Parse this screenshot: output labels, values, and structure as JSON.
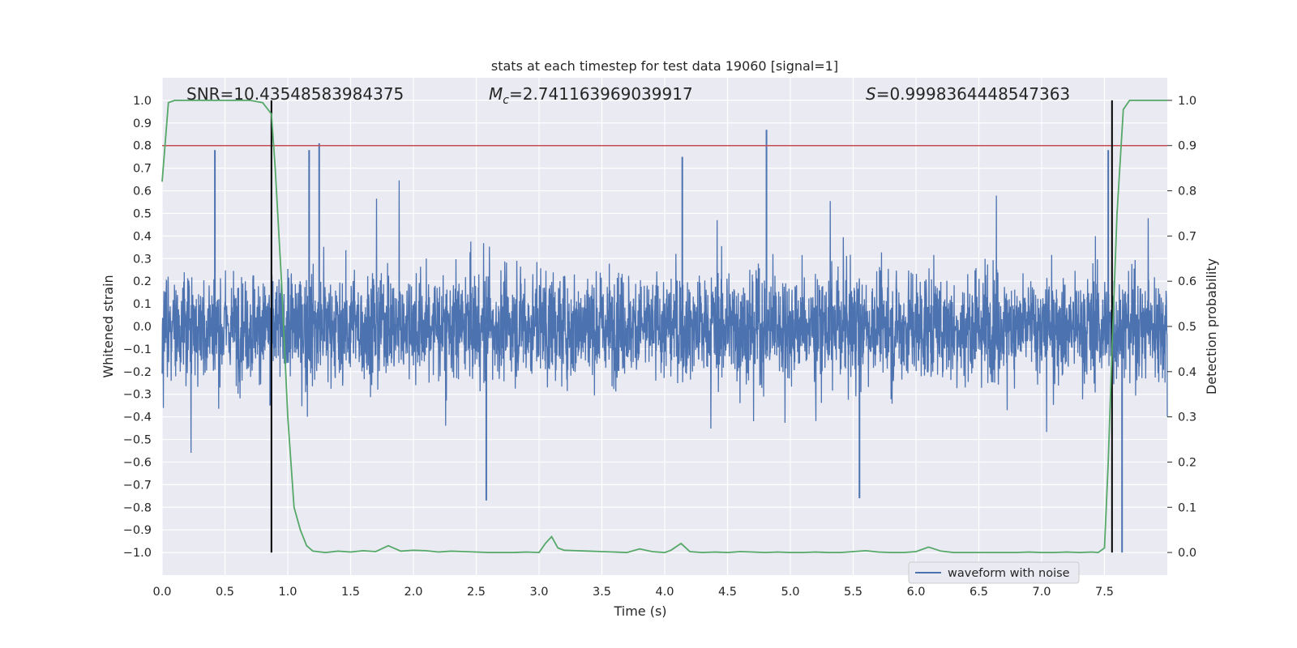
{
  "chart_data": {
    "type": "line",
    "title": "stats at each timestep for test data 19060 [signal=1]",
    "xlabel": "Time (s)",
    "ylabel_left": "Whitened strain",
    "ylabel_right": "Detection probability",
    "xlim": [
      0.0,
      8.0
    ],
    "ylim_left": [
      -1.1,
      1.1
    ],
    "ylim_right": [
      -0.05,
      1.05
    ],
    "x_ticks": [
      0.0,
      0.5,
      1.0,
      1.5,
      2.0,
      2.5,
      3.0,
      3.5,
      4.0,
      4.5,
      5.0,
      5.5,
      6.0,
      6.5,
      7.0,
      7.5
    ],
    "x_tick_labels": [
      "0.0",
      "0.5",
      "1.0",
      "1.5",
      "2.0",
      "2.5",
      "3.0",
      "3.5",
      "4.0",
      "4.5",
      "5.0",
      "5.5",
      "6.0",
      "6.5",
      "7.0",
      "7.5"
    ],
    "y_left_ticks": [
      1.0,
      0.9,
      0.8,
      0.7,
      0.6,
      0.5,
      0.4,
      0.3,
      0.2,
      0.1,
      0.0,
      -0.1,
      -0.2,
      -0.3,
      -0.4,
      -0.5,
      -0.6,
      -0.7,
      -0.8,
      -0.9,
      -1.0
    ],
    "y_left_tick_labels": [
      "1.0",
      "0.9",
      "0.8",
      "0.7",
      "0.6",
      "0.5",
      "0.4",
      "0.3",
      "0.2",
      "0.1",
      "0.0",
      "−0.1",
      "−0.2",
      "−0.3",
      "−0.4",
      "−0.5",
      "−0.6",
      "−0.7",
      "−0.8",
      "−0.9",
      "−1.0"
    ],
    "y_right_ticks": [
      1.0,
      0.9,
      0.8,
      0.7,
      0.6,
      0.5,
      0.4,
      0.3,
      0.2,
      0.1,
      0.0
    ],
    "y_right_tick_labels": [
      "1.0",
      "0.9",
      "0.8",
      "0.7",
      "0.6",
      "0.5",
      "0.4",
      "0.3",
      "0.2",
      "0.1",
      "0.0"
    ],
    "grid": true,
    "annotations": {
      "snr": "SNR=10.43548583984375",
      "mc_symbol": "M",
      "mc_subscript": "c",
      "mc_value": "=2.741163969039917",
      "s_symbol": "S",
      "s_value": "=0.9998364448547363"
    },
    "threshold_line": {
      "axis": "right",
      "value": 0.9,
      "color": "#c44e52"
    },
    "vertical_lines": [
      0.87,
      7.56
    ],
    "series": [
      {
        "name": "waveform with noise",
        "axis": "left",
        "color": "#4c72b0",
        "kind": "noise",
        "core_amplitude": 0.3,
        "max_amplitude": 1.0,
        "notable_peaks": [
          [
            0.42,
            0.78
          ],
          [
            0.86,
            -0.35
          ],
          [
            1.17,
            0.78
          ],
          [
            1.25,
            0.81
          ],
          [
            2.58,
            -0.77
          ],
          [
            4.14,
            0.75
          ],
          [
            4.81,
            0.87
          ],
          [
            5.55,
            -0.76
          ],
          [
            7.53,
            0.78
          ],
          [
            7.64,
            -1.0
          ]
        ]
      },
      {
        "name": "detection probability",
        "axis": "right",
        "color": "#55a868",
        "x": [
          0.0,
          0.05,
          0.1,
          0.2,
          0.3,
          0.4,
          0.5,
          0.6,
          0.7,
          0.8,
          0.87,
          0.9,
          0.95,
          1.0,
          1.05,
          1.1,
          1.15,
          1.2,
          1.3,
          1.4,
          1.5,
          1.6,
          1.7,
          1.8,
          1.9,
          2.0,
          2.1,
          2.2,
          2.3,
          2.4,
          2.5,
          2.6,
          2.7,
          2.8,
          2.9,
          3.0,
          3.05,
          3.1,
          3.15,
          3.2,
          3.3,
          3.4,
          3.5,
          3.6,
          3.7,
          3.8,
          3.9,
          4.0,
          4.05,
          4.13,
          4.2,
          4.3,
          4.4,
          4.5,
          4.6,
          4.7,
          4.8,
          4.9,
          5.0,
          5.1,
          5.2,
          5.3,
          5.4,
          5.5,
          5.6,
          5.7,
          5.8,
          5.9,
          6.0,
          6.1,
          6.2,
          6.3,
          6.4,
          6.5,
          6.6,
          6.7,
          6.8,
          6.9,
          7.0,
          7.1,
          7.2,
          7.3,
          7.4,
          7.45,
          7.5,
          7.53,
          7.56,
          7.6,
          7.65,
          7.7,
          7.8,
          7.9,
          8.0
        ],
        "values": [
          0.82,
          0.995,
          1.0,
          1.0,
          1.0,
          1.0,
          1.0,
          1.0,
          1.0,
          0.995,
          0.97,
          0.85,
          0.6,
          0.3,
          0.1,
          0.05,
          0.015,
          0.003,
          0.0,
          0.003,
          0.001,
          0.004,
          0.002,
          0.015,
          0.003,
          0.005,
          0.004,
          0.001,
          0.003,
          0.002,
          0.001,
          0.0,
          0.0,
          0.0,
          0.001,
          0.0,
          0.02,
          0.035,
          0.01,
          0.005,
          0.004,
          0.003,
          0.002,
          0.001,
          0.0,
          0.008,
          0.002,
          0.0,
          0.005,
          0.02,
          0.002,
          0.0,
          0.001,
          0.0,
          0.002,
          0.001,
          0.0,
          0.001,
          0.0,
          0.0,
          0.001,
          0.0,
          0.0,
          0.002,
          0.004,
          0.001,
          0.0,
          0.0,
          0.002,
          0.012,
          0.003,
          0.0,
          0.0,
          0.0,
          0.0,
          0.0,
          0.0,
          0.001,
          0.0,
          0.0,
          0.001,
          0.0,
          0.001,
          0.0,
          0.01,
          0.2,
          0.45,
          0.75,
          0.98,
          1.0,
          1.0,
          1.0,
          1.0
        ]
      }
    ],
    "legend": {
      "entries": [
        "waveform with noise"
      ],
      "location": "lower right"
    }
  }
}
